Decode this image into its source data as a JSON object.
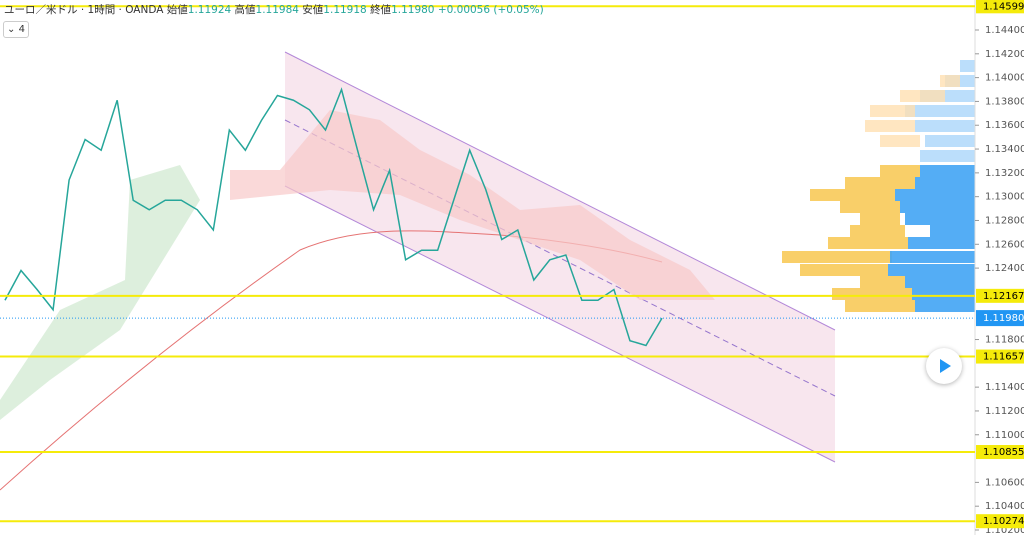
{
  "header": {
    "symbol": "ユーロ／米ドル · 1時間 · OANDA",
    "quotes": [
      {
        "label": "始値",
        "value": "1.11924"
      },
      {
        "label": "高値",
        "value": "1.11984"
      },
      {
        "label": "安値",
        "value": "1.11918"
      },
      {
        "label": "終値",
        "value": "1.11980"
      }
    ],
    "change": "+0.00056 (+0.05%)",
    "collapse_button": "4"
  },
  "chart_data": {
    "type": "line",
    "ylim": [
      1.14652,
      1.10158
    ],
    "yticks": [
      {
        "value": 1.144,
        "label": "1.14400"
      },
      {
        "value": 1.142,
        "label": "1.14200"
      },
      {
        "value": 1.14,
        "label": "1.14000"
      },
      {
        "value": 1.138,
        "label": "1.13800"
      },
      {
        "value": 1.136,
        "label": "1.13600"
      },
      {
        "value": 1.134,
        "label": "1.13400"
      },
      {
        "value": 1.132,
        "label": "1.13200"
      },
      {
        "value": 1.13,
        "label": "1.13000"
      },
      {
        "value": 1.128,
        "label": "1.12800"
      },
      {
        "value": 1.126,
        "label": "1.12600"
      },
      {
        "value": 1.124,
        "label": "1.12400"
      },
      {
        "value": 1.118,
        "label": "1.11800"
      },
      {
        "value": 1.114,
        "label": "1.11400"
      },
      {
        "value": 1.112,
        "label": "1.11200"
      },
      {
        "value": 1.11,
        "label": "1.11000"
      },
      {
        "value": 1.106,
        "label": "1.10600"
      },
      {
        "value": 1.104,
        "label": "1.10400"
      },
      {
        "value": 1.102,
        "label": "1.10200"
      }
    ],
    "series": [
      {
        "name": "ユーロ／米ドル",
        "color": "#26a69a",
        "values": [
          1.1213,
          1.1238,
          1.1222,
          1.1205,
          1.1314,
          1.1348,
          1.1339,
          1.1381,
          1.1297,
          1.1289,
          1.1297,
          1.1297,
          1.1289,
          1.1272,
          1.1356,
          1.1339,
          1.1364,
          1.1385,
          1.1381,
          1.1373,
          1.1356,
          1.139,
          1.1339,
          1.1289,
          1.1322,
          1.1247,
          1.1255,
          1.1255,
          1.1297,
          1.1339,
          1.1306,
          1.1264,
          1.1272,
          1.123,
          1.1247,
          1.1251,
          1.1213,
          1.1213,
          1.1222,
          1.1179,
          1.1175,
          1.1198
        ]
      }
    ],
    "levels": [
      {
        "value": 1.14599,
        "label": "1.14599"
      },
      {
        "value": 1.12167,
        "label": "1.12167"
      },
      {
        "value": 1.11657,
        "label": "1.11657"
      },
      {
        "value": 1.10855,
        "label": "1.10855"
      },
      {
        "value": 1.10274,
        "label": "1.10274"
      }
    ],
    "level_color": "#f5eb0a",
    "last_price": {
      "value": 1.1198,
      "label": "1.11980",
      "color": "#2196f3"
    }
  }
}
